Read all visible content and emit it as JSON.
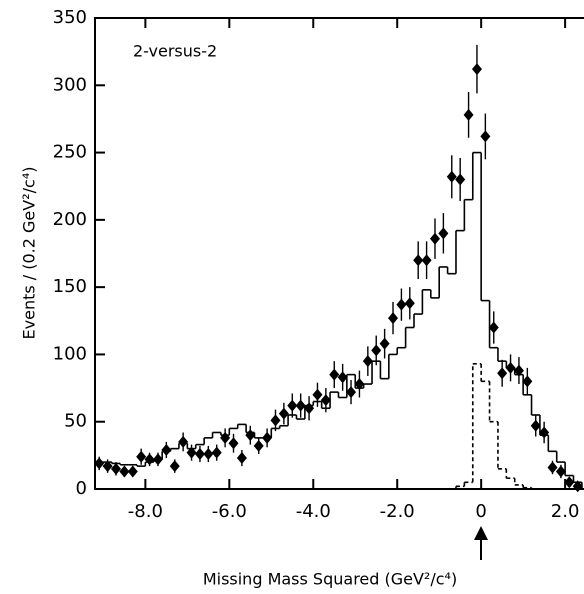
{
  "chart_data": {
    "type": "histogram",
    "annotation": "2-versus-2",
    "x_label": "Missing Mass Squared (GeV²/c⁴)",
    "y_label": "Events / (0.2 GeV²/c⁴)",
    "xlim": [
      -9.2,
      2.45
    ],
    "ylim": [
      0,
      350
    ],
    "xticks": [
      {
        "value": -8,
        "label": "-8.0"
      },
      {
        "value": -6,
        "label": "-6.0"
      },
      {
        "value": -4,
        "label": "-4.0"
      },
      {
        "value": -2,
        "label": "-2.0"
      },
      0,
      {
        "value": 2,
        "label": "2.0"
      }
    ],
    "yticks": [
      0,
      50,
      100,
      150,
      200,
      250,
      300,
      350
    ],
    "color": "#000000",
    "histograms": [
      {
        "style": "solid",
        "bins": [
          -9.2,
          -9.0,
          -8.8,
          -8.6,
          -8.4,
          -8.2,
          -8.0,
          -7.8,
          -7.6,
          -7.4,
          -7.2,
          -7.0,
          -6.8,
          -6.6,
          -6.4,
          -6.2,
          -6.0,
          -5.8,
          -5.6,
          -5.4,
          -5.2,
          -5.0,
          -4.8,
          -4.6,
          -4.4,
          -4.2,
          -4.0,
          -3.8,
          -3.6,
          -3.4,
          -3.2,
          -3.0,
          -2.8,
          -2.6,
          -2.4,
          -2.2,
          -2.0,
          -1.8,
          -1.6,
          -1.4,
          -1.2,
          -1.0,
          -0.8,
          -0.6,
          -0.4,
          -0.2,
          0.0,
          0.2,
          0.4,
          0.6,
          0.8,
          1.0,
          1.2,
          1.4,
          1.6,
          1.8,
          2.0,
          2.2,
          2.4
        ],
        "counts": [
          20,
          20,
          19,
          18,
          18,
          17,
          20,
          22,
          28,
          30,
          34,
          30,
          33,
          38,
          42,
          40,
          45,
          48,
          42,
          38,
          38,
          45,
          47,
          55,
          52,
          62,
          65,
          60,
          72,
          68,
          85,
          75,
          78,
          95,
          82,
          100,
          105,
          120,
          130,
          148,
          142,
          165,
          160,
          192,
          215,
          250,
          140,
          105,
          95,
          90,
          85,
          70,
          55,
          40,
          28,
          20,
          10,
          5
        ]
      },
      {
        "style": "dashed",
        "bins": [
          -0.6,
          -0.4,
          -0.2,
          0.0,
          0.2,
          0.4,
          0.6,
          0.8,
          1.0,
          1.2,
          1.4
        ],
        "counts": [
          2,
          5,
          93,
          80,
          50,
          15,
          8,
          3,
          1,
          0
        ]
      }
    ],
    "points": {
      "x": [
        -9.1,
        -8.9,
        -8.7,
        -8.5,
        -8.3,
        -8.1,
        -7.9,
        -7.7,
        -7.5,
        -7.3,
        -7.1,
        -6.9,
        -6.7,
        -6.5,
        -6.3,
        -6.1,
        -5.9,
        -5.7,
        -5.5,
        -5.3,
        -5.1,
        -4.9,
        -4.7,
        -4.5,
        -4.3,
        -4.1,
        -3.9,
        -3.7,
        -3.5,
        -3.3,
        -3.1,
        -2.9,
        -2.7,
        -2.5,
        -2.3,
        -2.1,
        -1.9,
        -1.7,
        -1.5,
        -1.3,
        -1.1,
        -0.9,
        -0.7,
        -0.5,
        -0.3,
        -0.1,
        0.1,
        0.3,
        0.5,
        0.7,
        0.9,
        1.1,
        1.3,
        1.5,
        1.7,
        1.9,
        2.1,
        2.3
      ],
      "y": [
        19,
        17,
        15,
        13,
        13,
        24,
        22,
        22,
        29,
        17,
        35,
        27,
        26,
        26,
        27,
        38,
        34,
        23,
        40,
        32,
        38,
        51,
        56,
        62,
        62,
        60,
        70,
        66,
        85,
        83,
        72,
        78,
        95,
        103,
        108,
        127,
        137,
        138,
        170,
        170,
        186,
        190,
        232,
        230,
        278,
        312,
        262,
        120,
        86,
        90,
        88,
        80,
        47,
        42,
        16,
        13,
        5,
        2
      ],
      "errors": [
        5,
        5,
        5,
        4,
        4,
        6,
        5,
        5,
        6,
        5,
        7,
        6,
        6,
        6,
        6,
        7,
        7,
        6,
        7,
        6,
        7,
        8,
        8,
        9,
        9,
        9,
        9,
        9,
        10,
        10,
        9,
        10,
        11,
        11,
        11,
        12,
        12,
        12,
        14,
        14,
        15,
        15,
        16,
        16,
        17,
        18,
        17,
        12,
        10,
        10,
        10,
        10,
        8,
        8,
        5,
        5,
        3,
        2
      ]
    }
  }
}
